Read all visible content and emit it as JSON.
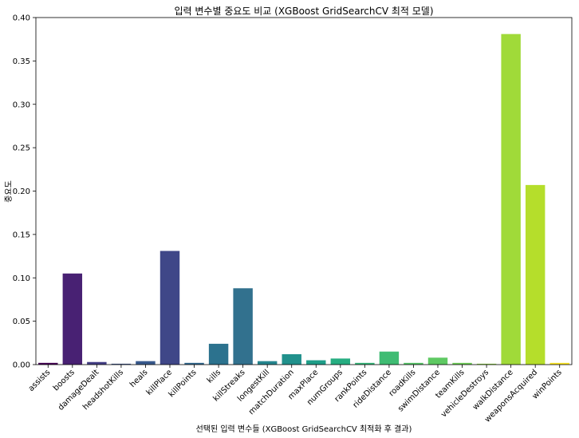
{
  "chart_data": {
    "type": "bar",
    "title": "입력 변수별 중요도 비교 (XGBoost GridSearchCV 최적 모델)",
    "xlabel": "선택된 입력 변수들 (XGBoost GridSearchCV 최적화 후 결과)",
    "ylabel": "중요도",
    "ylim": [
      0,
      0.4
    ],
    "yticks": [
      "0.00",
      "0.05",
      "0.10",
      "0.15",
      "0.20",
      "0.25",
      "0.30",
      "0.35",
      "0.40"
    ],
    "grid": false,
    "colormap": "viridis",
    "categories": [
      "assists",
      "boosts",
      "damageDealt",
      "headshotKills",
      "heals",
      "killPlace",
      "killPoints",
      "kills",
      "killStreaks",
      "longestKill",
      "matchDuration",
      "maxPlace",
      "numGroups",
      "rankPoints",
      "rideDistance",
      "roadKills",
      "swimDistance",
      "teamKills",
      "vehicleDestroys",
      "walkDistance",
      "weaponsAcquired",
      "winPoints"
    ],
    "values": [
      0.002,
      0.105,
      0.003,
      0.001,
      0.004,
      0.131,
      0.002,
      0.024,
      0.088,
      0.004,
      0.012,
      0.005,
      0.007,
      0.002,
      0.015,
      0.002,
      0.008,
      0.002,
      0.001,
      0.381,
      0.207,
      0.002
    ],
    "colors": [
      "#440154",
      "#482173",
      "#433e85",
      "#3b528b",
      "#38598c",
      "#3f4788",
      "#31688e",
      "#2c728e",
      "#32718e",
      "#25858e",
      "#21918c",
      "#1f9e89",
      "#26ad81",
      "#35b779",
      "#3fbc73",
      "#55c667",
      "#5ec962",
      "#6ece58",
      "#90d743",
      "#a0da39",
      "#b5de2b",
      "#fde725"
    ]
  }
}
